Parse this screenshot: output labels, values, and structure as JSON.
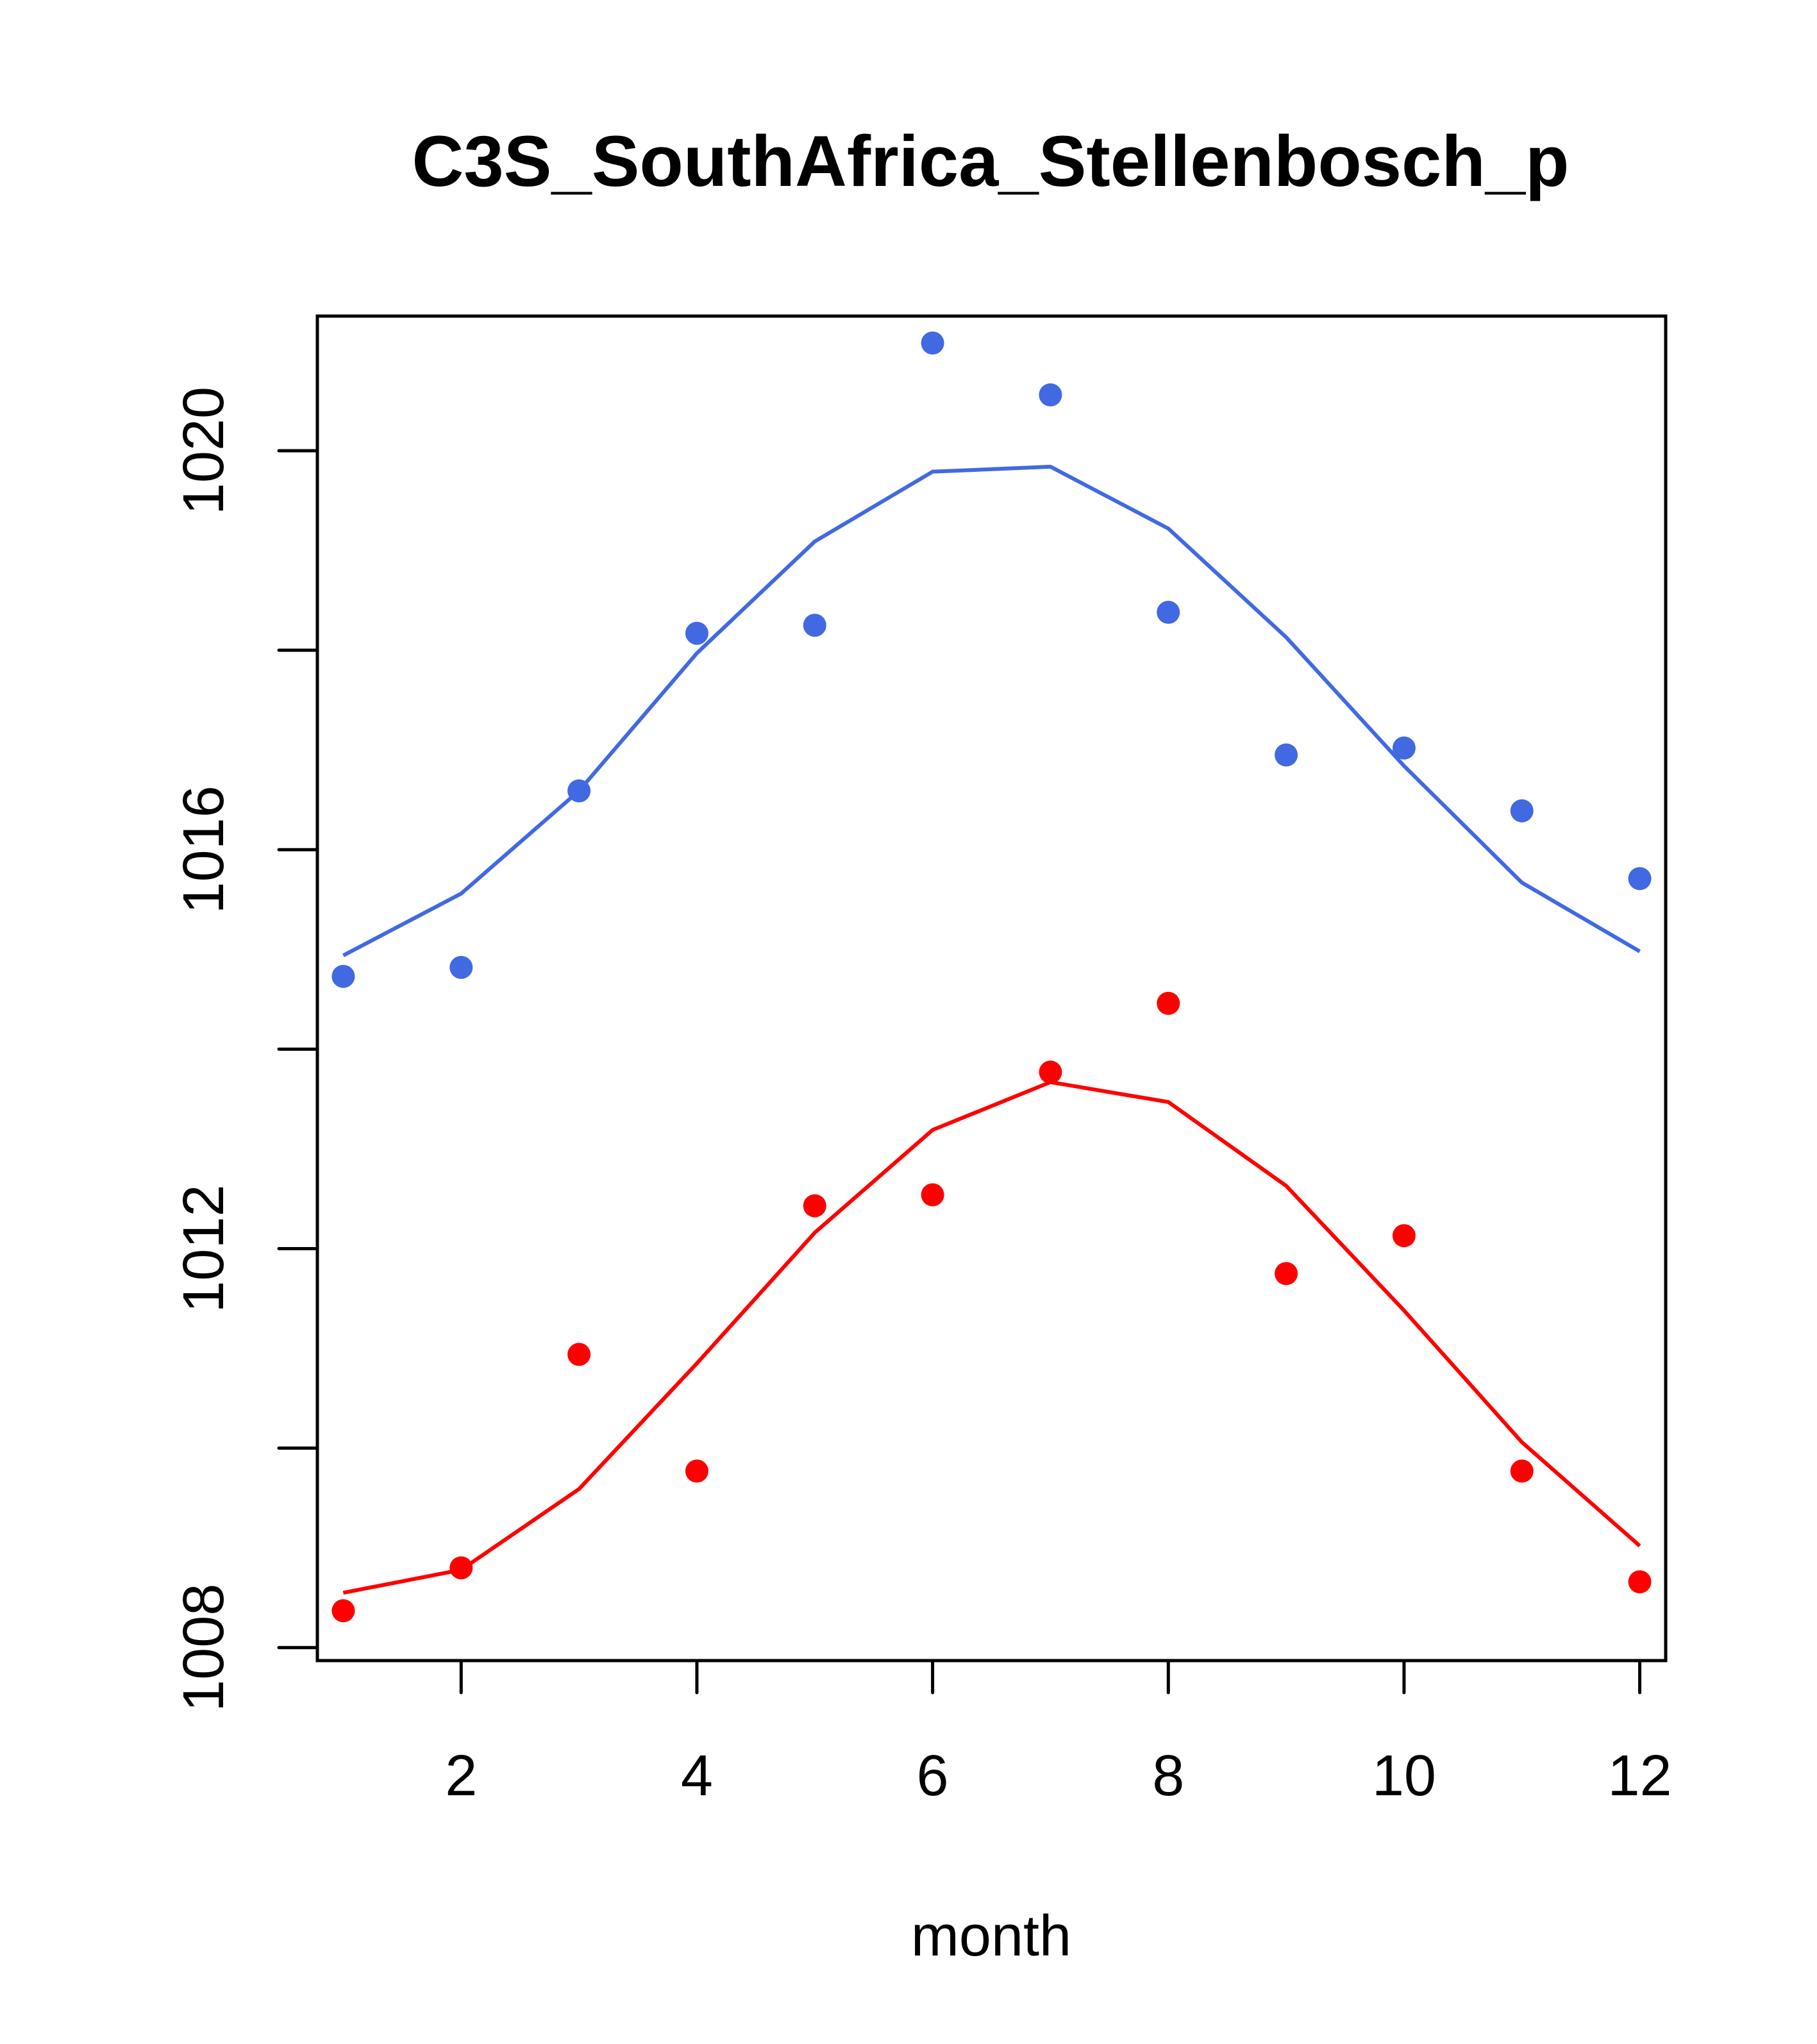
{
  "chart_data": {
    "type": "scatter",
    "title": "C3S_SouthAfrica_Stellenbosch_p",
    "xlabel": "month",
    "ylabel": "",
    "xlim": [
      0.78,
      12.22
    ],
    "ylim": [
      1007.87,
      1021.35
    ],
    "x_ticks": [
      2,
      4,
      6,
      8,
      10,
      12
    ],
    "x_tick_labels": [
      "2",
      "4",
      "6",
      "8",
      "10",
      "12"
    ],
    "y_ticks": [
      1008,
      1010,
      1012,
      1014,
      1016,
      1018,
      1020
    ],
    "y_tick_labels": [
      "1008",
      "",
      "1012",
      "",
      "1016",
      "",
      "1020"
    ],
    "grid": false,
    "legend": "none",
    "x": [
      1,
      2,
      3,
      4,
      5,
      6,
      7,
      8,
      9,
      10,
      11,
      12
    ],
    "series": [
      {
        "name": "blue-points",
        "kind": "points",
        "color": "#4169E1",
        "values": [
          1014.73,
          1014.82,
          1016.59,
          1018.17,
          1018.25,
          1021.08,
          1020.56,
          1018.38,
          1016.95,
          1017.02,
          1016.39,
          1015.71
        ]
      },
      {
        "name": "blue-line",
        "kind": "line",
        "color": "#4169E1",
        "values": [
          1014.94,
          1015.56,
          1016.59,
          1017.97,
          1019.09,
          1019.79,
          1019.84,
          1019.22,
          1018.13,
          1016.84,
          1015.67,
          1014.98
        ]
      },
      {
        "name": "red-points",
        "kind": "points",
        "color": "#FF0000",
        "values": [
          1008.37,
          1008.8,
          1010.94,
          1009.77,
          1012.43,
          1012.54,
          1013.77,
          1014.46,
          1011.75,
          1012.13,
          1009.77,
          1008.66
        ]
      },
      {
        "name": "red-line",
        "kind": "line",
        "color": "#FF0000",
        "values": [
          1008.55,
          1008.78,
          1009.59,
          1010.85,
          1012.16,
          1013.19,
          1013.67,
          1013.47,
          1012.63,
          1011.38,
          1010.06,
          1009.02
        ]
      }
    ]
  }
}
